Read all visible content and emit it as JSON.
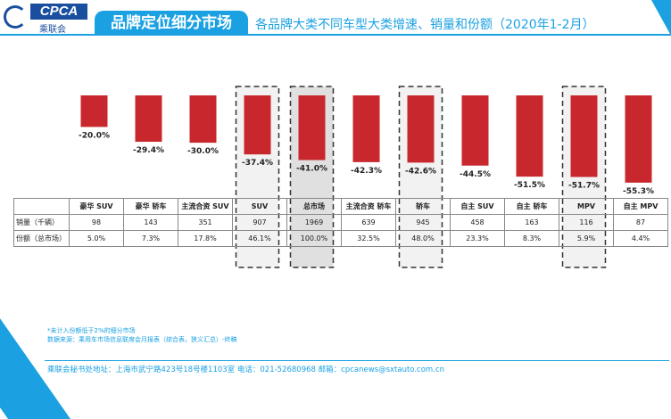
{
  "header": {
    "logo_text": "CPCA",
    "logo_cn": "乘联会",
    "tab_title": "品牌定位细分市场",
    "subtitle": "各品牌大类不同车型大类增速、销量和份额（2020年1-2月）"
  },
  "chart_data": {
    "type": "bar",
    "categories": [
      "豪华 SUV",
      "豪华 轿车",
      "主流合资 SUV",
      "SUV",
      "总市场",
      "主流合资 轿车",
      "轿车",
      "自主 SUV",
      "自主 轿车",
      "MPV",
      "自主 MPV"
    ],
    "values": [
      -20.0,
      -29.4,
      -30.0,
      -37.4,
      -41.0,
      -42.3,
      -42.6,
      -44.5,
      -51.5,
      -51.7,
      -55.3
    ],
    "data_labels": [
      "-20.0%",
      "-29.4%",
      "-30.0%",
      "-37.4%",
      "-41.0%",
      "-42.3%",
      "-42.6%",
      "-44.5%",
      "-51.5%",
      "-51.7%",
      "-55.3%"
    ],
    "highlighted": [
      "SUV",
      "总市场",
      "轿车",
      "MPV"
    ],
    "bar_color": "#c8282d"
  },
  "table": {
    "rows": [
      {
        "label": "销量（千辆）",
        "values": [
          "98",
          "143",
          "351",
          "907",
          "1969",
          "639",
          "945",
          "458",
          "163",
          "116",
          "87"
        ]
      },
      {
        "label": "份额（总市场）",
        "values": [
          "5.0%",
          "7.3%",
          "17.8%",
          "46.1%",
          "100.0%",
          "32.5%",
          "48.0%",
          "23.3%",
          "8.3%",
          "5.9%",
          "4.4%"
        ]
      }
    ]
  },
  "notes": [
    "*未计入份额低于2%的细分市场",
    "数据来源：乘用车市场信息联席会月报表（综合表，狭义汇总）-终稿"
  ],
  "footer": "乘联会秘书处地址：上海市武宁路423号18号楼1103室  电话：021-52680968   邮箱：cpcanews@sxtauto.com.cn"
}
